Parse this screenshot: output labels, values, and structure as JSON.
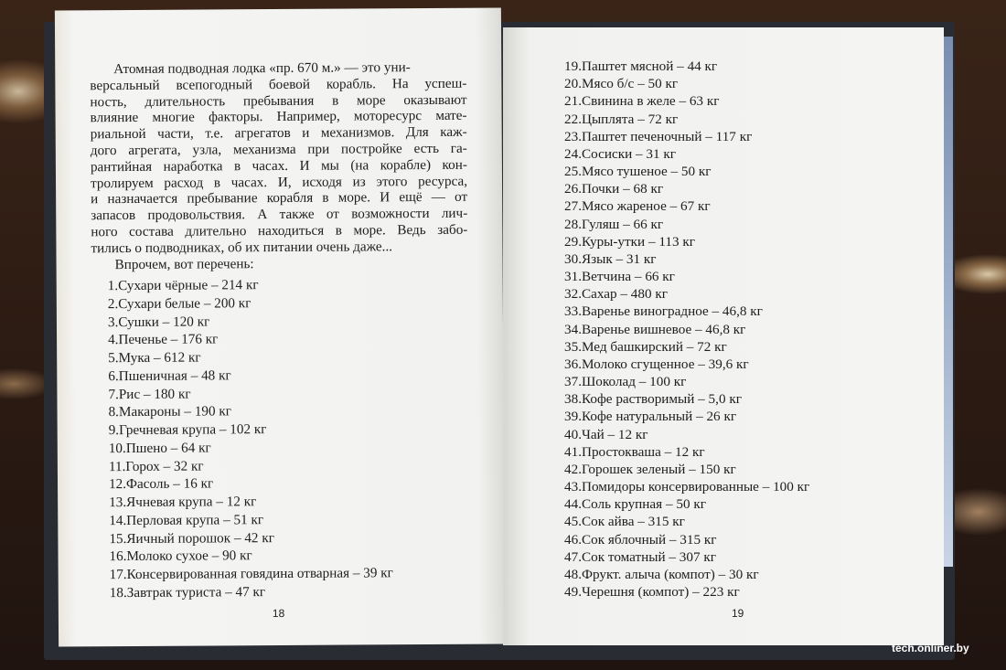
{
  "left_page": {
    "paragraph_lines": [
      "Атомная подводная лодка «пр. 670 м.» — это уни-",
      "версальный всепогодный боевой корабль. На успеш-",
      "ность, длительность пребывания в море оказывают",
      "влияние многие факторы. Например, моторесурс мате-",
      "риальной части, т.е. агрегатов и механизмов. Для каж-",
      "дого агрегата, узла, механизма при постройке есть га-",
      "рантийная наработка в часах. И мы (на корабле) кон-",
      "тролируем расход в часах. И, исходя из этого ресурса,",
      "и назначается пребывание корабля в море. И ещё — от",
      "запасов продовольствия. А также от возможности лич-",
      "ного состава длительно находиться в море. Ведь забо-",
      "тились о подводниках, об их питании очень даже...",
      "Впрочем, вот перечень:"
    ],
    "items": [
      "1.Сухари чёрные – 214 кг",
      "2.Сухари белые – 200 кг",
      "3.Сушки – 120 кг",
      "4.Печенье – 176 кг",
      "5.Мука – 612 кг",
      "6.Пшеничная – 48 кг",
      "7.Рис – 180 кг",
      "8.Макароны – 190 кг",
      "9.Гречневая крупа – 102 кг",
      "10.Пшено – 64 кг",
      "11.Горох – 32 кг",
      "12.Фасоль – 16 кг",
      "13.Ячневая крупа – 12 кг",
      "14.Перловая крупа – 51 кг",
      "15.Яичный порошок – 42 кг",
      "16.Молоко сухое – 90 кг",
      "17.Консервированная говядина отварная – 39 кг",
      "18.Завтрак туриста – 47 кг"
    ],
    "page_number": "18"
  },
  "right_page": {
    "items": [
      "19.Паштет мясной – 44  кг",
      "20.Мясо б/с – 50 кг",
      "21.Свинина в желе – 63 кг",
      "22.Цыплята – 72 кг",
      "23.Паштет печеночный – 117 кг",
      "24.Сосиски – 31 кг",
      "25.Мясо тушеное – 50 кг",
      "26.Почки – 68 кг",
      "27.Мясо жареное – 67 кг",
      "28.Гуляш – 66 кг",
      "29.Куры-утки – 113 кг",
      "30.Язык – 31 кг",
      "31.Ветчина – 66 кг",
      "32.Сахар – 480 кг",
      "33.Варенье виноградное – 46,8  кг",
      "34.Варенье вишневое – 46,8 кг",
      "35.Мед башкирский – 72 кг",
      "36.Молоко сгущенное – 39,6 кг",
      "37.Шоколад – 100 кг",
      "38.Кофе растворимый – 5,0 кг",
      "39.Кофе натуральный – 26 кг",
      "40.Чай – 12 кг",
      "41.Простокваша – 12 кг",
      "42.Горошек зеленый – 150 кг",
      "43.Помидоры консервированные – 100 кг",
      "44.Соль крупная – 50 кг",
      "45.Сок айва – 315 кг",
      "46.Сок яблочный – 315 кг",
      "47.Сок томатный – 307 кг",
      "48.Фрукт. алыча (компот) – 30 кг",
      "49.Черешня (компот) – 223 кг"
    ],
    "page_number": "19"
  },
  "watermark": "tech.onliner.by"
}
